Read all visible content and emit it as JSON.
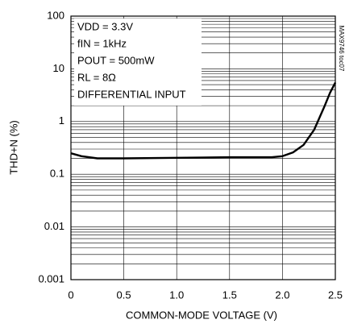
{
  "chart_data": {
    "type": "line",
    "xlabel": "COMMON-MODE VOLTAGE (V)",
    "ylabel": "THD+N (%)",
    "note": "MAX9746 toc07",
    "annotations": [
      "VDD = 3.3V",
      "fIN = 1kHz",
      "POUT = 500mW",
      "RL = 8Ω",
      "DIFFERENTIAL INPUT"
    ],
    "x": [
      0,
      0.1,
      0.25,
      0.5,
      1.0,
      1.5,
      1.9,
      2.0,
      2.1,
      2.2,
      2.3,
      2.4,
      2.45,
      2.5
    ],
    "series": [
      {
        "name": "THD+N",
        "color": "#000000",
        "values": [
          0.25,
          0.22,
          0.2,
          0.2,
          0.205,
          0.21,
          0.21,
          0.22,
          0.26,
          0.36,
          0.7,
          2.0,
          3.5,
          5.5
        ]
      }
    ],
    "xlim": [
      0,
      2.5
    ],
    "xticks": [
      0,
      0.5,
      {
        "value": 1,
        "label": "1.0"
      },
      {
        "value": 1.5,
        "label": "1.5"
      },
      {
        "value": 2,
        "label": "2.0"
      },
      {
        "value": 2.5,
        "label": "2.5"
      }
    ],
    "ylim": [
      0.001,
      100
    ],
    "yticks": [
      0.001,
      0.01,
      0.1,
      1,
      10,
      100
    ],
    "ylog": true,
    "grid": true,
    "minor_grid": true
  }
}
